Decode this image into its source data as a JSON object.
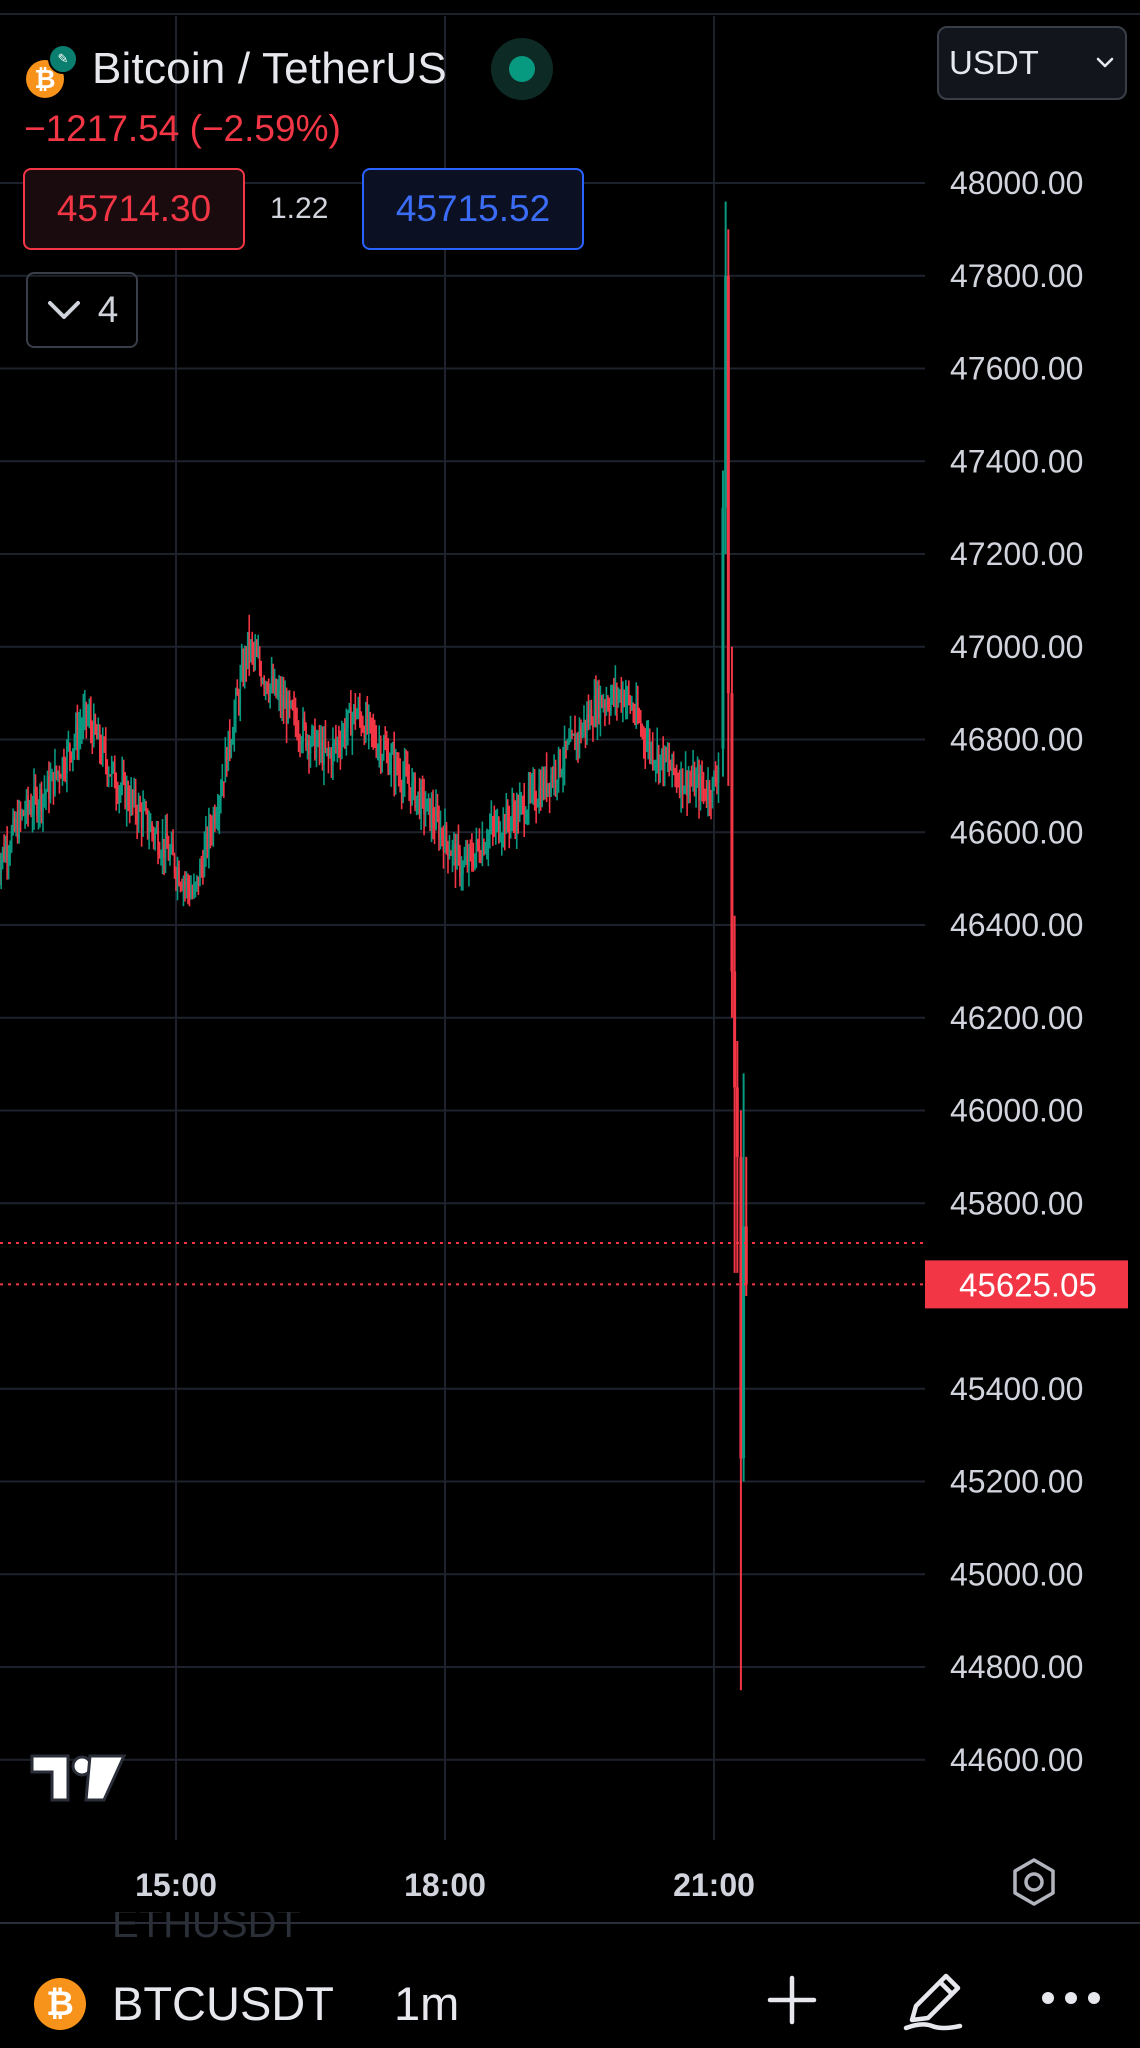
{
  "header": {
    "pair_title": "Bitcoin / TetherUS",
    "coin_glyph": "₿",
    "exchange_badge_icon": "exchange-badge-icon",
    "change_text": "−1217.54 (−2.59%)",
    "bid_price": "45714.30",
    "spread": "1.22",
    "ask_price": "45715.52",
    "collapse_count": "4",
    "market_status": "open"
  },
  "currency_select": {
    "value": "USDT"
  },
  "chart_data": {
    "type": "candlestick",
    "y_axis": {
      "ticks": [
        "48000.00",
        "47800.00",
        "47600.00",
        "47400.00",
        "47200.00",
        "47000.00",
        "46800.00",
        "46600.00",
        "46400.00",
        "46200.00",
        "46000.00",
        "45800.00",
        "45400.00",
        "45200.00",
        "45000.00",
        "44800.00",
        "44600.00"
      ],
      "range": [
        44500,
        48100
      ]
    },
    "x_axis": {
      "ticks": [
        "15:00",
        "18:00",
        "21:00"
      ]
    },
    "last_price_label": "45625.05",
    "price_lines": [
      45714.3,
      45625.05
    ],
    "grid": true,
    "approx_close_path": [
      [
        13.0,
        46530
      ],
      [
        13.3,
        46640
      ],
      [
        13.6,
        46700
      ],
      [
        14.0,
        46850
      ],
      [
        14.3,
        46720
      ],
      [
        14.6,
        46640
      ],
      [
        14.9,
        46560
      ],
      [
        15.2,
        46460
      ],
      [
        15.5,
        46700
      ],
      [
        15.8,
        47000
      ],
      [
        16.1,
        46900
      ],
      [
        16.4,
        46820
      ],
      [
        16.7,
        46760
      ],
      [
        17.0,
        46860
      ],
      [
        17.3,
        46780
      ],
      [
        17.6,
        46700
      ],
      [
        17.9,
        46620
      ],
      [
        18.2,
        46520
      ],
      [
        18.5,
        46600
      ],
      [
        18.8,
        46640
      ],
      [
        19.1,
        46700
      ],
      [
        19.4,
        46780
      ],
      [
        19.7,
        46880
      ],
      [
        20.0,
        46900
      ],
      [
        20.3,
        46780
      ],
      [
        20.6,
        46720
      ],
      [
        20.9,
        46690
      ],
      [
        21.0,
        46700
      ],
      [
        21.1,
        46800
      ],
      [
        21.15,
        47800
      ],
      [
        21.2,
        46200
      ],
      [
        21.25,
        45900
      ],
      [
        21.3,
        45700
      ],
      [
        21.35,
        45625
      ]
    ],
    "spike_high": 47960,
    "spike_low": 44750,
    "up_color": "#089981",
    "down_color": "#f23645",
    "watermark_icon": "tradingview-logo-icon"
  },
  "bottom_bar": {
    "symbol": "BTCUSDT",
    "interval": "1m",
    "ghost_symbol": "ETHUSDT",
    "coin_glyph": "₿"
  },
  "colors": {
    "background": "#000000",
    "grid": "#1e222d",
    "axis_text": "#d1d4dc",
    "down": "#f23645",
    "up": "#089981",
    "ask_blue": "#2962ff"
  }
}
